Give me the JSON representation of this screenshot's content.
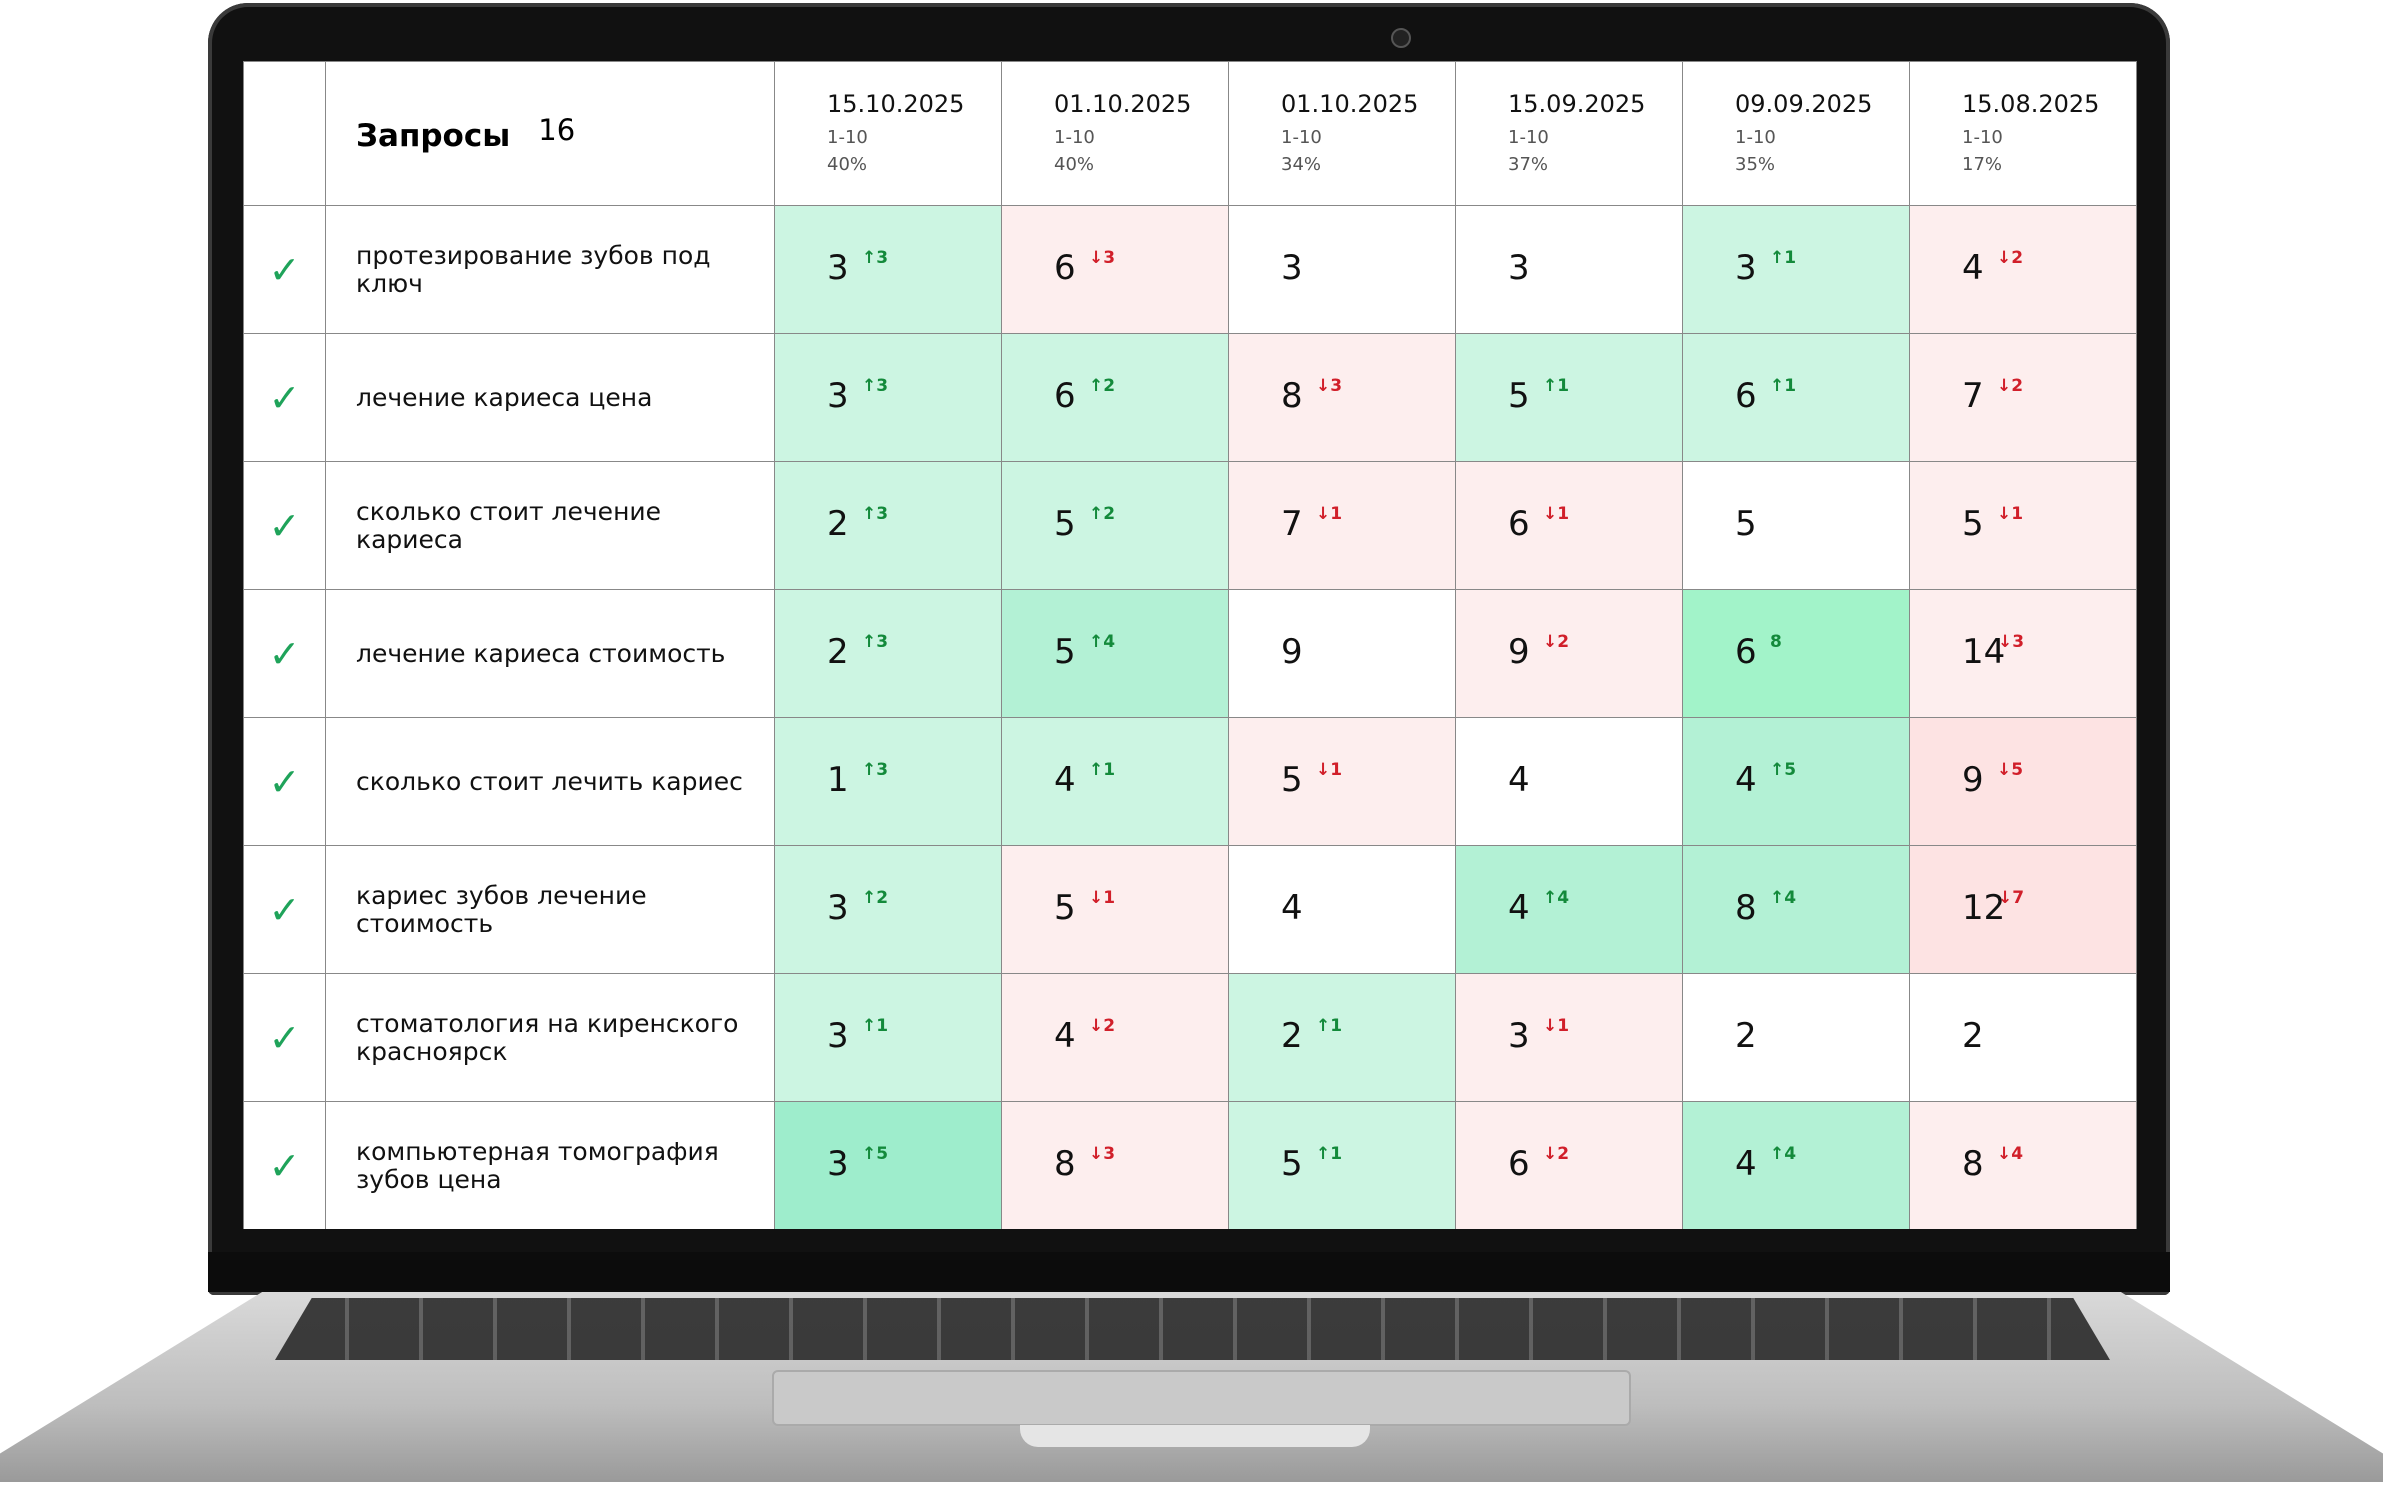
{
  "header": {
    "title": "Запросы",
    "count": "16"
  },
  "columns": [
    {
      "date": "15.10.2025",
      "range": "1-10",
      "percent": "40%"
    },
    {
      "date": "01.10.2025",
      "range": "1-10",
      "percent": "40%"
    },
    {
      "date": "01.10.2025",
      "range": "1-10",
      "percent": "34%"
    },
    {
      "date": "15.09.2025",
      "range": "1-10",
      "percent": "37%"
    },
    {
      "date": "09.09.2025",
      "range": "1-10",
      "percent": "35%"
    },
    {
      "date": "15.08.2025",
      "range": "1-10",
      "percent": "17%"
    }
  ],
  "colors": {
    "up": "#138a3b",
    "down": "#d11f2a",
    "check": "#1fa35a"
  },
  "rows": [
    {
      "query": "протезирование зубов под ключ",
      "cells": [
        {
          "value": "3",
          "delta": "↑3",
          "dir": "up",
          "tone": "g1"
        },
        {
          "value": "6",
          "delta": "↓3",
          "dir": "down",
          "tone": "r1"
        },
        {
          "value": "3",
          "delta": "",
          "dir": "",
          "tone": "w"
        },
        {
          "value": "3",
          "delta": "",
          "dir": "",
          "tone": "w"
        },
        {
          "value": "3",
          "delta": "↑1",
          "dir": "up",
          "tone": "g1"
        },
        {
          "value": "4",
          "delta": "↓2",
          "dir": "down",
          "tone": "r1"
        }
      ]
    },
    {
      "query": "лечение кариеса цена",
      "cells": [
        {
          "value": "3",
          "delta": "↑3",
          "dir": "up",
          "tone": "g1"
        },
        {
          "value": "6",
          "delta": "↑2",
          "dir": "up",
          "tone": "g1"
        },
        {
          "value": "8",
          "delta": "↓3",
          "dir": "down",
          "tone": "r1"
        },
        {
          "value": "5",
          "delta": "↑1",
          "dir": "up",
          "tone": "g1"
        },
        {
          "value": "6",
          "delta": "↑1",
          "dir": "up",
          "tone": "g1"
        },
        {
          "value": "7",
          "delta": "↓2",
          "dir": "down",
          "tone": "r1"
        }
      ]
    },
    {
      "query": "сколько стоит лечение кариеса",
      "cells": [
        {
          "value": "2",
          "delta": "↑3",
          "dir": "up",
          "tone": "g1"
        },
        {
          "value": "5",
          "delta": "↑2",
          "dir": "up",
          "tone": "g1"
        },
        {
          "value": "7",
          "delta": "↓1",
          "dir": "down",
          "tone": "r1"
        },
        {
          "value": "6",
          "delta": "↓1",
          "dir": "down",
          "tone": "r1"
        },
        {
          "value": "5",
          "delta": "",
          "dir": "",
          "tone": "w"
        },
        {
          "value": "5",
          "delta": "↓1",
          "dir": "down",
          "tone": "r1"
        }
      ]
    },
    {
      "query": "лечение кариеса стоимость",
      "cells": [
        {
          "value": "2",
          "delta": "↑3",
          "dir": "up",
          "tone": "g1"
        },
        {
          "value": "5",
          "delta": "↑4",
          "dir": "up",
          "tone": "g2"
        },
        {
          "value": "9",
          "delta": "",
          "dir": "",
          "tone": "w"
        },
        {
          "value": "9",
          "delta": "↓2",
          "dir": "down",
          "tone": "r1"
        },
        {
          "value": "6",
          "delta": "8",
          "dir": "up",
          "tone": "g3"
        },
        {
          "value": "14",
          "delta": "↓3",
          "dir": "down",
          "tone": "r1"
        }
      ]
    },
    {
      "query": "сколько стоит лечить кариес",
      "cells": [
        {
          "value": "1",
          "delta": "↑3",
          "dir": "up",
          "tone": "g1"
        },
        {
          "value": "4",
          "delta": "↑1",
          "dir": "up",
          "tone": "g1"
        },
        {
          "value": "5",
          "delta": "↓1",
          "dir": "down",
          "tone": "r1"
        },
        {
          "value": "4",
          "delta": "",
          "dir": "",
          "tone": "w"
        },
        {
          "value": "4",
          "delta": "↑5",
          "dir": "up",
          "tone": "g2"
        },
        {
          "value": "9",
          "delta": "↓5",
          "dir": "down",
          "tone": "r2"
        }
      ]
    },
    {
      "query": "кариес зубов лечение стоимость",
      "cells": [
        {
          "value": "3",
          "delta": "↑2",
          "dir": "up",
          "tone": "g1"
        },
        {
          "value": "5",
          "delta": "↓1",
          "dir": "down",
          "tone": "r1"
        },
        {
          "value": "4",
          "delta": "",
          "dir": "",
          "tone": "w"
        },
        {
          "value": "4",
          "delta": "↑4",
          "dir": "up",
          "tone": "g2"
        },
        {
          "value": "8",
          "delta": "↑4",
          "dir": "up",
          "tone": "g2"
        },
        {
          "value": "12",
          "delta": "↓7",
          "dir": "down",
          "tone": "r2"
        }
      ]
    },
    {
      "query": "стоматология на киренского красноярск",
      "cells": [
        {
          "value": "3",
          "delta": "↑1",
          "dir": "up",
          "tone": "g1"
        },
        {
          "value": "4",
          "delta": "↓2",
          "dir": "down",
          "tone": "r1"
        },
        {
          "value": "2",
          "delta": "↑1",
          "dir": "up",
          "tone": "g1"
        },
        {
          "value": "3",
          "delta": "↓1",
          "dir": "down",
          "tone": "r1"
        },
        {
          "value": "2",
          "delta": "",
          "dir": "",
          "tone": "w"
        },
        {
          "value": "2",
          "delta": "",
          "dir": "",
          "tone": "w"
        }
      ]
    },
    {
      "query": "компьютерная томография зубов цена",
      "cells": [
        {
          "value": "3",
          "delta": "↑5",
          "dir": "up",
          "tone": "g4"
        },
        {
          "value": "8",
          "delta": "↓3",
          "dir": "down",
          "tone": "r1"
        },
        {
          "value": "5",
          "delta": "↑1",
          "dir": "up",
          "tone": "g1"
        },
        {
          "value": "6",
          "delta": "↓2",
          "dir": "down",
          "tone": "r1"
        },
        {
          "value": "4",
          "delta": "↑4",
          "dir": "up",
          "tone": "g2"
        },
        {
          "value": "8",
          "delta": "↓4",
          "dir": "down",
          "tone": "r1"
        }
      ]
    }
  ]
}
